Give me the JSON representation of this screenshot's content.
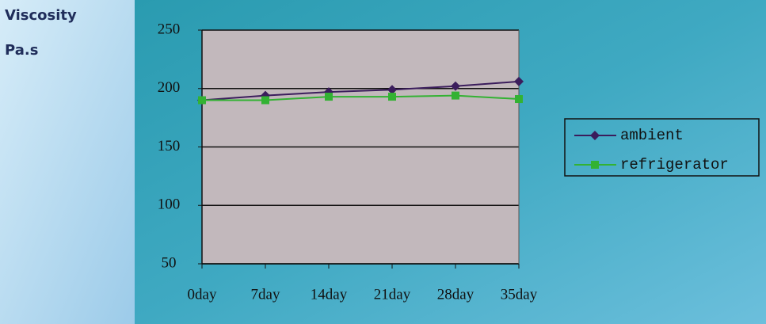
{
  "chart_data": {
    "type": "line",
    "ylabel": "Viscosity",
    "yunit": "Pa.s",
    "categories": [
      "0day",
      "7day",
      "14day",
      "21day",
      "28day",
      "35day"
    ],
    "series": [
      {
        "name": "ambient",
        "color": "#3b1d5c",
        "marker": "diamond",
        "values": [
          190,
          194,
          197,
          199,
          202,
          206
        ]
      },
      {
        "name": "refrigerator",
        "color": "#33b233",
        "marker": "square",
        "values": [
          190,
          190,
          193,
          193,
          194,
          191
        ]
      }
    ],
    "ylim": [
      50,
      250
    ],
    "yticks": [
      50,
      100,
      150,
      200,
      250
    ],
    "grid": true,
    "legend": "right"
  }
}
